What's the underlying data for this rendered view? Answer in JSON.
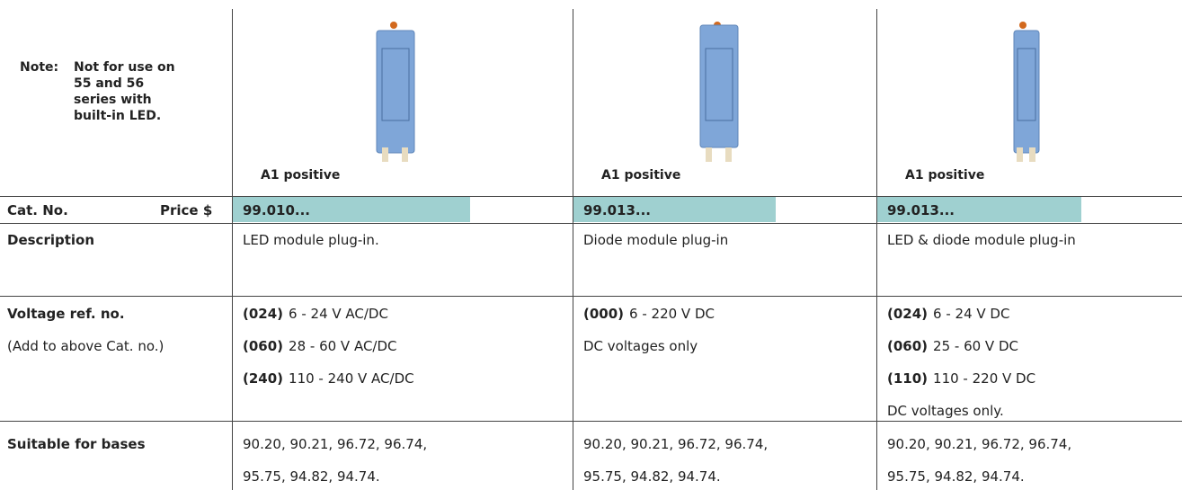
{
  "note": {
    "label": "Note:",
    "lines": [
      "Not for use on",
      "55 and 56",
      "series with",
      "built-in LED."
    ]
  },
  "row_labels": {
    "cat_no": "Cat. No.",
    "price": "Price $",
    "description": "Description",
    "voltage": "Voltage ref. no.",
    "voltage_sub": "(Add to above Cat. no.)",
    "bases": "Suitable for bases"
  },
  "products": [
    {
      "polarity": "A1 positive",
      "cat_no": "99.010...",
      "description": "LED module plug-in.",
      "voltages": [
        {
          "code": "(024)",
          "range": "6 - 24 V AC/DC"
        },
        {
          "code": "(060)",
          "range": "28 - 60 V AC/DC"
        },
        {
          "code": "(240)",
          "range": "110 - 240 V AC/DC"
        }
      ],
      "bases": [
        "90.20, 90.21, 96.72, 96.74,",
        "95.75, 94.82, 94.74."
      ]
    },
    {
      "polarity": "A1 positive",
      "cat_no": "99.013...",
      "description": "Diode module plug-in",
      "voltages": [
        {
          "code": "(000)",
          "range": "6 - 220 V DC"
        }
      ],
      "voltage_note": "DC voltages only",
      "bases": [
        "90.20, 90.21, 96.72, 96.74,",
        "95.75, 94.82, 94.74."
      ]
    },
    {
      "polarity": "A1 positive",
      "cat_no": "99.013...",
      "description": "LED & diode module plug-in",
      "voltages": [
        {
          "code": "(024)",
          "range": "6 - 24 V DC"
        },
        {
          "code": "(060)",
          "range": "25 - 60 V DC"
        },
        {
          "code": "(110)",
          "range": "110 - 220 V DC"
        }
      ],
      "voltage_note": "DC voltages only.",
      "bases": [
        "90.20, 90.21, 96.72, 96.74,",
        "95.75, 94.82, 94.74."
      ]
    }
  ]
}
